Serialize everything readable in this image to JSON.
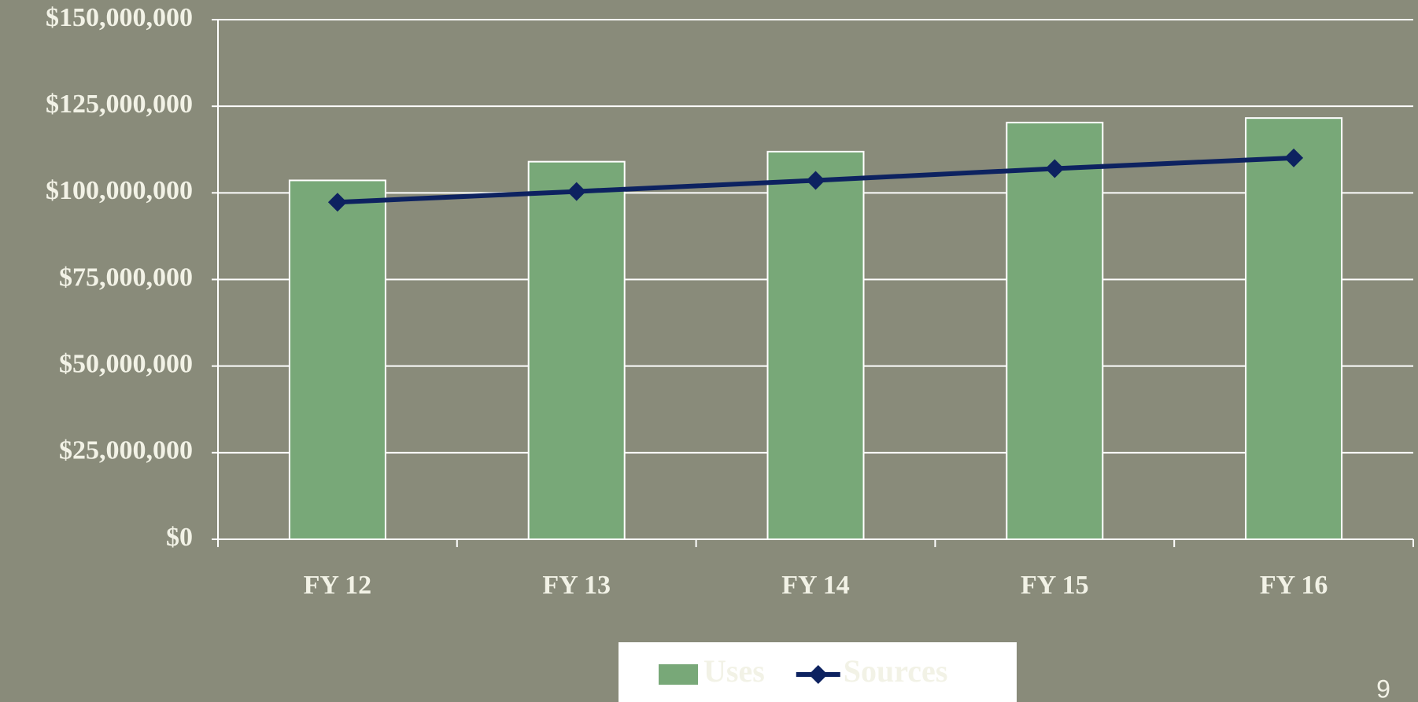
{
  "chart_data": {
    "type": "bar_line",
    "categories": [
      "FY 12",
      "FY 13",
      "FY 14",
      "FY 15",
      "FY 16"
    ],
    "series": [
      {
        "name": "Uses",
        "type": "bar",
        "color": "#78a878",
        "values": [
          103600000,
          109000000,
          111900000,
          120300000,
          121600000
        ]
      },
      {
        "name": "Sources",
        "type": "line",
        "color": "#0d2260",
        "values": [
          97300000,
          100400000,
          103600000,
          107000000,
          110100000
        ]
      }
    ],
    "ylim": [
      0,
      150000000
    ],
    "yticks": [
      {
        "value": 0,
        "label": "$0"
      },
      {
        "value": 25000000,
        "label": "$25,000,000"
      },
      {
        "value": 50000000,
        "label": "$50,000,000"
      },
      {
        "value": 75000000,
        "label": "$75,000,000"
      },
      {
        "value": 100000000,
        "label": "$100,000,000"
      },
      {
        "value": 125000000,
        "label": "$125,000,000"
      },
      {
        "value": 150000000,
        "label": "$150,000,000"
      }
    ],
    "grid": true,
    "legend": "bottom",
    "page_number": "9"
  }
}
